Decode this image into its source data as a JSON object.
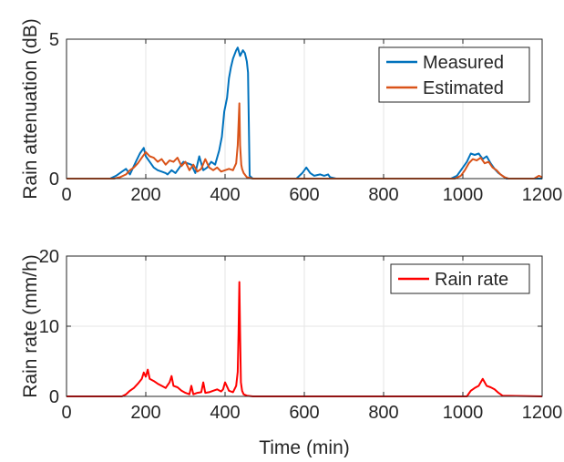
{
  "chart_data": [
    {
      "type": "line",
      "xlabel": "",
      "ylabel": "Rain attenuation (dB)",
      "xlim": [
        0,
        1200
      ],
      "ylim": [
        0,
        5
      ],
      "xticks": [
        0,
        200,
        400,
        600,
        800,
        1000,
        1200
      ],
      "yticks": [
        0,
        5
      ],
      "grid": true,
      "legend_position": "top-right",
      "series": [
        {
          "name": "Measured",
          "color": "#0072BD",
          "x": [
            0,
            110,
            125,
            140,
            150,
            160,
            175,
            185,
            195,
            200,
            210,
            220,
            230,
            240,
            250,
            255,
            265,
            275,
            285,
            295,
            305,
            315,
            325,
            335,
            345,
            355,
            365,
            375,
            385,
            392,
            398,
            405,
            410,
            415,
            420,
            428,
            432,
            438,
            445,
            450,
            455,
            458,
            462,
            470,
            520,
            580,
            595,
            605,
            615,
            625,
            640,
            650,
            660,
            665,
            680,
            800,
            970,
            985,
            1000,
            1010,
            1020,
            1030,
            1040,
            1050,
            1060,
            1070,
            1080,
            1090,
            1100,
            1110,
            1200
          ],
          "y": [
            0,
            0,
            0.1,
            0.25,
            0.35,
            0.15,
            0.6,
            0.9,
            1.1,
            0.8,
            0.6,
            0.4,
            0.3,
            0.25,
            0.2,
            0.15,
            0.3,
            0.2,
            0.4,
            0.6,
            0.55,
            0.5,
            0.2,
            0.8,
            0.3,
            0.4,
            0.6,
            0.5,
            1.0,
            1.5,
            2.4,
            2.9,
            3.6,
            4.0,
            4.3,
            4.6,
            4.7,
            4.4,
            4.6,
            4.5,
            4.2,
            3.8,
            0.1,
            0,
            0,
            0,
            0.2,
            0.4,
            0.2,
            0.1,
            0.15,
            0.1,
            0.15,
            0.05,
            0,
            0,
            0,
            0.1,
            0.4,
            0.6,
            0.9,
            0.85,
            0.9,
            0.7,
            0.8,
            0.55,
            0.35,
            0.2,
            0.1,
            0,
            0
          ]
        },
        {
          "name": "Estimated",
          "color": "#D95319",
          "x": [
            0,
            120,
            135,
            150,
            160,
            170,
            180,
            190,
            200,
            210,
            220,
            230,
            240,
            250,
            260,
            270,
            280,
            290,
            300,
            310,
            320,
            330,
            340,
            350,
            360,
            370,
            380,
            390,
            400,
            410,
            420,
            428,
            432,
            436,
            438,
            441,
            443,
            447,
            455,
            470,
            980,
            995,
            1005,
            1015,
            1025,
            1035,
            1045,
            1055,
            1065,
            1075,
            1085,
            1095,
            1105,
            1115,
            1180,
            1192,
            1200
          ],
          "y": [
            0,
            0,
            0.05,
            0.15,
            0.3,
            0.4,
            0.55,
            0.75,
            0.95,
            0.8,
            0.75,
            0.6,
            0.7,
            0.5,
            0.65,
            0.6,
            0.75,
            0.45,
            0.6,
            0.3,
            0.5,
            0.25,
            0.35,
            0.7,
            0.4,
            0.3,
            0.4,
            0.25,
            0.3,
            0.35,
            0.3,
            0.55,
            1.2,
            2.7,
            1.2,
            0.5,
            0.35,
            0.2,
            0.05,
            0,
            0,
            0.1,
            0.3,
            0.55,
            0.7,
            0.65,
            0.75,
            0.55,
            0.6,
            0.4,
            0.3,
            0.15,
            0.05,
            0,
            0,
            0.1,
            0.05
          ]
        }
      ]
    },
    {
      "type": "line",
      "xlabel": "Time (min)",
      "ylabel": "Rain rate (mm/h)",
      "xlim": [
        0,
        1200
      ],
      "ylim": [
        0,
        20
      ],
      "xticks": [
        0,
        200,
        400,
        600,
        800,
        1000,
        1200
      ],
      "yticks": [
        0,
        10,
        20
      ],
      "grid": true,
      "legend_position": "top-right",
      "series": [
        {
          "name": "Rain rate",
          "color": "#FF0000",
          "x": [
            0,
            140,
            150,
            160,
            170,
            180,
            190,
            195,
            200,
            205,
            210,
            220,
            230,
            240,
            250,
            260,
            265,
            270,
            280,
            290,
            300,
            310,
            315,
            320,
            330,
            340,
            345,
            350,
            360,
            370,
            380,
            390,
            395,
            400,
            410,
            420,
            428,
            432,
            434,
            436,
            438,
            440,
            443,
            447,
            455,
            470,
            1010,
            1020,
            1030,
            1040,
            1050,
            1060,
            1070,
            1080,
            1090,
            1100,
            1200
          ],
          "y": [
            0,
            0,
            0.3,
            0.8,
            1.2,
            1.8,
            2.5,
            3.4,
            2.8,
            3.8,
            2.5,
            2.2,
            1.8,
            1.5,
            1.2,
            2.0,
            2.9,
            1.5,
            1.3,
            0.8,
            0.5,
            0.3,
            1.5,
            0.3,
            0.5,
            0.6,
            2.0,
            0.5,
            0.6,
            0.8,
            1.0,
            0.7,
            1.0,
            2.0,
            0.8,
            0.6,
            1.5,
            3.5,
            9.0,
            16.3,
            9.0,
            2.0,
            0.8,
            0.3,
            0.1,
            0,
            0,
            0.8,
            1.2,
            1.5,
            2.5,
            1.5,
            1.3,
            1.0,
            0.5,
            0.1,
            0
          ]
        }
      ]
    }
  ]
}
